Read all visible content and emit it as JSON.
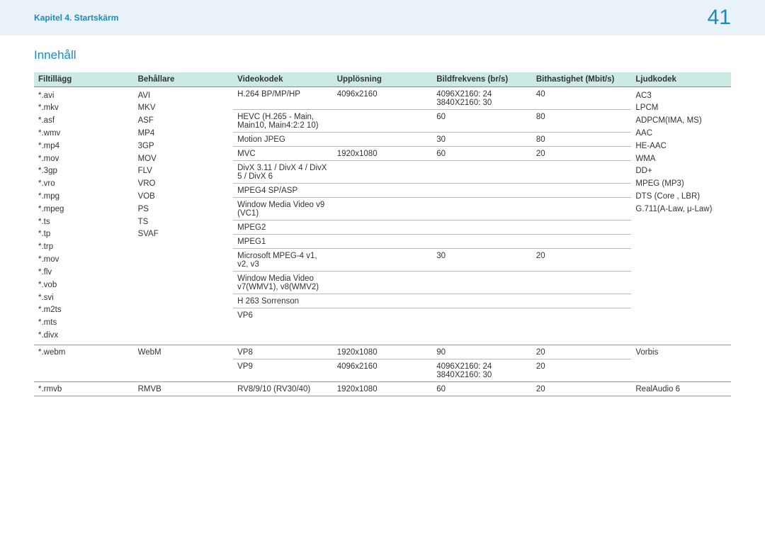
{
  "header": {
    "breadcrumb": "Kapitel 4. Startskärm",
    "page_number": "41"
  },
  "title": "Innehåll",
  "columns": {
    "ext": "Filtillägg",
    "container": "Behållare",
    "videocodec": "Videokodek",
    "resolution": "Upplösning",
    "fps": "Bildfrekvens (br/s)",
    "bitrate": "Bithastighet (Mbit/s)",
    "audiocodec": "Ljudkodek"
  },
  "group1": {
    "ext": [
      "*.avi",
      "*.mkv",
      "*.asf",
      "*.wmv",
      "*.mp4",
      "*.mov",
      "*.3gp",
      "*.vro",
      "*.mpg",
      "*.mpeg",
      "*.ts",
      "*.tp",
      "*.trp",
      "*.mov",
      "*.flv",
      "*.vob",
      "*.svi",
      "*.m2ts",
      "*.mts",
      " *.divx"
    ],
    "container": [
      "AVI",
      "MKV",
      "ASF",
      "MP4",
      "3GP",
      "MOV",
      "FLV",
      "VRO",
      "VOB",
      "PS",
      "TS",
      "SVAF"
    ],
    "audio": [
      "AC3",
      "LPCM",
      "ADPCM(IMA, MS)",
      "AAC",
      "HE-AAC",
      "WMA",
      "DD+",
      "MPEG (MP3)",
      "DTS (Core , LBR)",
      "G.711(A-Law, μ-Law)"
    ],
    "rows": [
      {
        "vid": "H.264 BP/MP/HP",
        "res": "4096x2160",
        "fps": "4096X2160: 24\n3840X2160: 30",
        "bit": "40"
      },
      {
        "vid": "HEVC (H.265 - Main, Main10, Main4:2:2 10)",
        "res": "",
        "fps": "60",
        "bit": "80"
      },
      {
        "vid": "Motion JPEG",
        "res": "",
        "fps": "30",
        "bit": "80"
      },
      {
        "vid": "MVC",
        "res": "1920x1080",
        "fps": "60",
        "bit": "20"
      },
      {
        "vid": "DivX 3.11 / DivX 4 / DivX 5 / DivX 6",
        "res": "",
        "fps": "",
        "bit": ""
      },
      {
        "vid": "MPEG4 SP/ASP",
        "res": "",
        "fps": "",
        "bit": ""
      },
      {
        "vid": "Window Media Video v9 (VC1)",
        "res": "",
        "fps": "",
        "bit": ""
      },
      {
        "vid": "MPEG2",
        "res": "",
        "fps": "",
        "bit": ""
      },
      {
        "vid": "MPEG1",
        "res": "",
        "fps": "",
        "bit": ""
      },
      {
        "vid": "Microsoft MPEG-4 v1, v2, v3",
        "res": "",
        "fps": "30",
        "bit": "20"
      },
      {
        "vid": "Window Media Video v7(WMV1), v8(WMV2)",
        "res": "",
        "fps": "",
        "bit": ""
      },
      {
        "vid": "H 263 Sorrenson",
        "res": "",
        "fps": "",
        "bit": ""
      },
      {
        "vid": "VP6",
        "res": "",
        "fps": "",
        "bit": ""
      }
    ]
  },
  "group2": {
    "ext": "*.webm",
    "container": "WebM",
    "audio": "Vorbis",
    "rows": [
      {
        "vid": "VP8",
        "res": "1920x1080",
        "fps": "90",
        "bit": "20"
      },
      {
        "vid": "VP9",
        "res": "4096x2160",
        "fps": "4096X2160: 24\n3840X2160: 30",
        "bit": "20"
      }
    ]
  },
  "group3": {
    "ext": "*.rmvb",
    "container": "RMVB",
    "vid": "RV8/9/10 (RV30/40)",
    "res": "1920x1080",
    "fps": "60",
    "bit": "20",
    "audio": "RealAudio 6"
  }
}
